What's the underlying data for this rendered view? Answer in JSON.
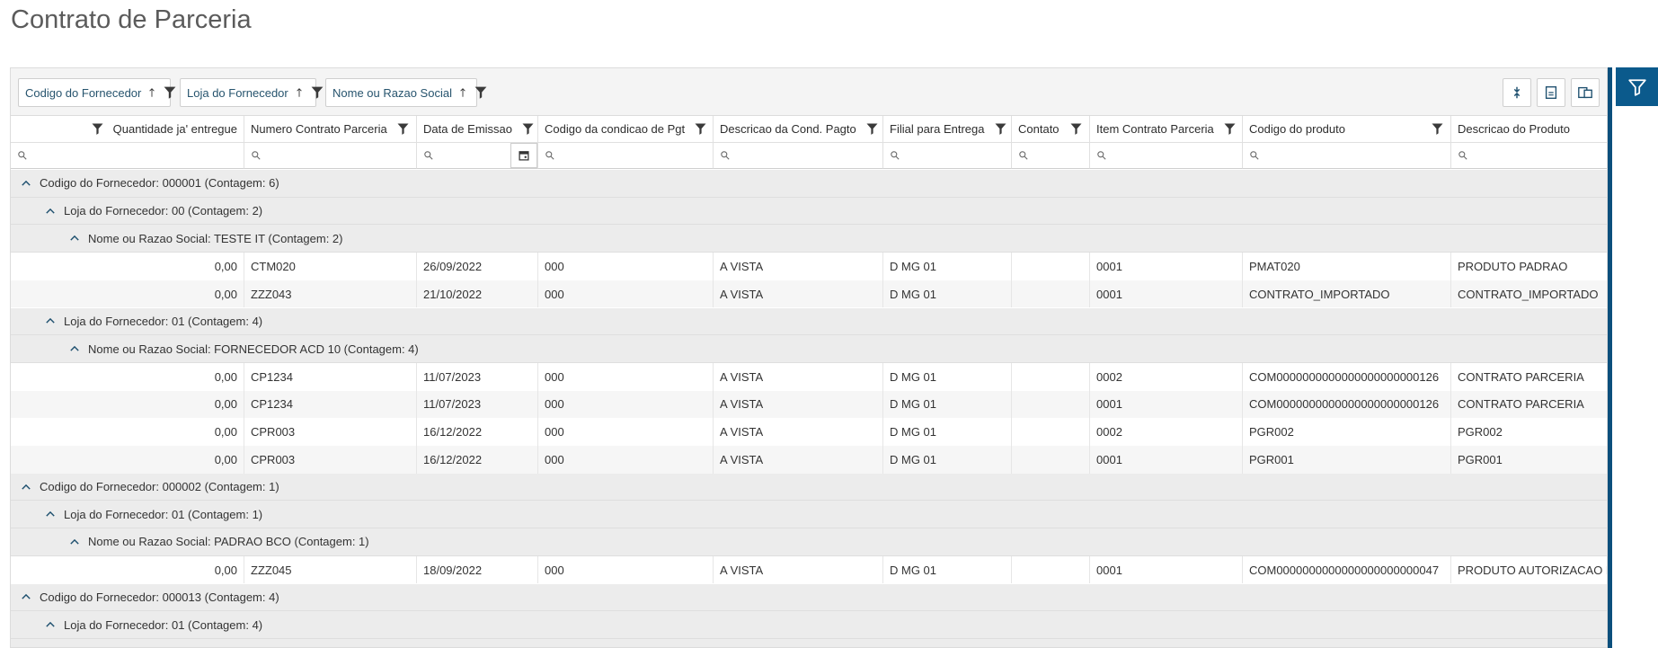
{
  "title": "Contrato de Parceria",
  "group_chips": [
    "Codigo do Fornecedor",
    "Loja do Fornecedor",
    "Nome ou Razao Social"
  ],
  "columns": [
    "Quantidade ja' entregue",
    "Numero Contrato Parceria",
    "Data de Emissao",
    "Codigo da condicao de Pgt",
    "Descricao da Cond. Pagto",
    "Filial para Entrega",
    "Contato",
    "Item Contrato Parceria",
    "Codigo do produto",
    "Descricao do Produto"
  ],
  "rows": [
    {
      "level": 0,
      "label": "Codigo do Fornecedor: 000001 (Contagem: 6)"
    },
    {
      "level": 1,
      "label": "Loja do Fornecedor: 00 (Contagem: 2)"
    },
    {
      "level": 2,
      "label": "Nome ou Razao Social: TESTE IT (Contagem: 2)"
    },
    {
      "cells": [
        "0,00",
        "CTM020",
        "26/09/2022",
        "000",
        "A VISTA",
        "D MG 01",
        null,
        "0001",
        "PMAT020",
        "PRODUTO PADRAO"
      ]
    },
    {
      "cells": [
        "0,00",
        "ZZZ043",
        "21/10/2022",
        "000",
        "A VISTA",
        "D MG 01",
        null,
        "0001",
        "CONTRATO_IMPORTADO",
        "CONTRATO_IMPORTADO"
      ]
    },
    {
      "level": 1,
      "label": "Loja do Fornecedor: 01 (Contagem: 4)"
    },
    {
      "level": 2,
      "label": "Nome ou Razao Social: FORNECEDOR ACD 10 (Contagem: 4)"
    },
    {
      "cells": [
        "0,00",
        "CP1234",
        "11/07/2023",
        "000",
        "A VISTA",
        "D MG 01",
        null,
        "0002",
        "COM0000000000000000000000126",
        "CONTRATO PARCERIA"
      ]
    },
    {
      "cells": [
        "0,00",
        "CP1234",
        "11/07/2023",
        "000",
        "A VISTA",
        "D MG 01",
        null,
        "0001",
        "COM0000000000000000000000126",
        "CONTRATO PARCERIA"
      ]
    },
    {
      "cells": [
        "0,00",
        "CPR003",
        "16/12/2022",
        "000",
        "A VISTA",
        "D MG 01",
        null,
        "0002",
        "PGR002",
        "PGR002"
      ]
    },
    {
      "cells": [
        "0,00",
        "CPR003",
        "16/12/2022",
        "000",
        "A VISTA",
        "D MG 01",
        null,
        "0001",
        "PGR001",
        "PGR001"
      ]
    },
    {
      "level": 0,
      "label": "Codigo do Fornecedor: 000002 (Contagem: 1)"
    },
    {
      "level": 1,
      "label": "Loja do Fornecedor: 01 (Contagem: 1)"
    },
    {
      "level": 2,
      "label": "Nome ou Razao Social: PADRAO BCO (Contagem: 1)"
    },
    {
      "cells": [
        "0,00",
        "ZZZ045",
        "18/09/2022",
        "000",
        "A VISTA",
        "D MG 01",
        null,
        "0001",
        "COM0000000000000000000000047",
        "PRODUTO AUTORIZACAO EN"
      ]
    },
    {
      "level": 0,
      "label": "Codigo do Fornecedor: 000013 (Contagem: 4)"
    },
    {
      "level": 1,
      "label": "Loja do Fornecedor: 01 (Contagem: 4)"
    }
  ]
}
